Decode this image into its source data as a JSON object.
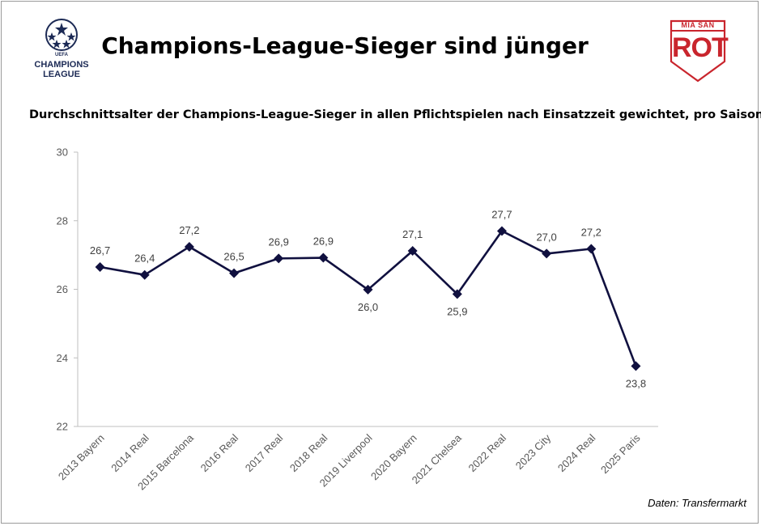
{
  "header": {
    "title": "Champions-League-Sieger sind jünger",
    "subtitle": "Durchschnittsalter der Champions-League-Sieger in allen Pflichtspielen nach Einsatzzeit gewichtet, pro Saison",
    "source": "Daten: Transfermarkt"
  },
  "logos": {
    "left": {
      "icon": "champions-league-starball-icon",
      "line1": "UEFA",
      "line2": "CHAMPIONS",
      "line3": "LEAGUE"
    },
    "right": {
      "icon": "mia-san-rot-crest-icon",
      "top_text": "MIA SAN",
      "main_text": "ROT"
    }
  },
  "colors": {
    "series": "#10103f",
    "axis": "#bfbfbf",
    "brand_red": "#c9252d",
    "ucl_blue": "#1c2a55"
  },
  "chart_data": {
    "type": "line",
    "title": "Champions-League-Sieger sind jünger",
    "subtitle": "Durchschnittsalter der Champions-League-Sieger in allen Pflichtspielen nach Einsatzzeit gewichtet, pro Saison",
    "xlabel": "",
    "ylabel": "",
    "categories": [
      "2013 Bayern",
      "2014 Real",
      "2015 Barcelona",
      "2016 Real",
      "2017 Real",
      "2018 Real",
      "2019 Liverpool",
      "2020 Bayern",
      "2021 Chelsea",
      "2022 Real",
      "2023 City",
      "2024 Real",
      "2025 Paris"
    ],
    "values": [
      26.65,
      26.42,
      27.24,
      26.47,
      26.9,
      26.92,
      25.99,
      27.12,
      25.86,
      27.7,
      27.04,
      27.18,
      23.76
    ],
    "data_labels": [
      "26,7",
      "26,4",
      "27,2",
      "26,5",
      "26,9",
      "26,9",
      "26,0",
      "27,1",
      "25,9",
      "27,7",
      "27,0",
      "27,2",
      "23,8"
    ],
    "label_position": [
      "above",
      "above",
      "above",
      "above",
      "above",
      "above",
      "below",
      "above",
      "below",
      "above",
      "above",
      "above",
      "below"
    ],
    "ylim": [
      22,
      30
    ],
    "yticks": [
      "30",
      "28",
      "26",
      "24",
      "22"
    ],
    "ytick_values": [
      30,
      28,
      26,
      24,
      22
    ],
    "marker": "diamond",
    "grid": false,
    "legend": "none"
  }
}
